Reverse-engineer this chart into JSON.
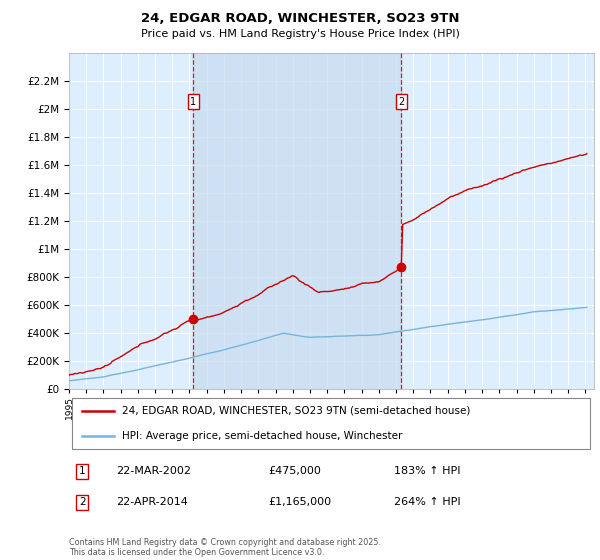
{
  "title_line1": "24, EDGAR ROAD, WINCHESTER, SO23 9TN",
  "title_line2": "Price paid vs. HM Land Registry's House Price Index (HPI)",
  "legend_label1": "24, EDGAR ROAD, WINCHESTER, SO23 9TN (semi-detached house)",
  "legend_label2": "HPI: Average price, semi-detached house, Winchester",
  "footnote": "Contains HM Land Registry data © Crown copyright and database right 2025.\nThis data is licensed under the Open Government Licence v3.0.",
  "sale1_date": "22-MAR-2002",
  "sale1_price": "£475,000",
  "sale1_hpi": "183% ↑ HPI",
  "sale2_date": "22-APR-2014",
  "sale2_price": "£1,165,000",
  "sale2_hpi": "264% ↑ HPI",
  "sale1_year": 2002.22,
  "sale2_year": 2014.31,
  "sale1_value": 475000,
  "sale2_value": 1165000,
  "hpi_color": "#7ab4d8",
  "price_color": "#cc0000",
  "dashed_color": "#cc0000",
  "bg_color": "#ddeeff",
  "shade_color": "#c8dcf0",
  "grid_color": "#ffffff",
  "ylim": [
    0,
    2400000
  ],
  "xlim_start": 1995,
  "xlim_end": 2025.5
}
